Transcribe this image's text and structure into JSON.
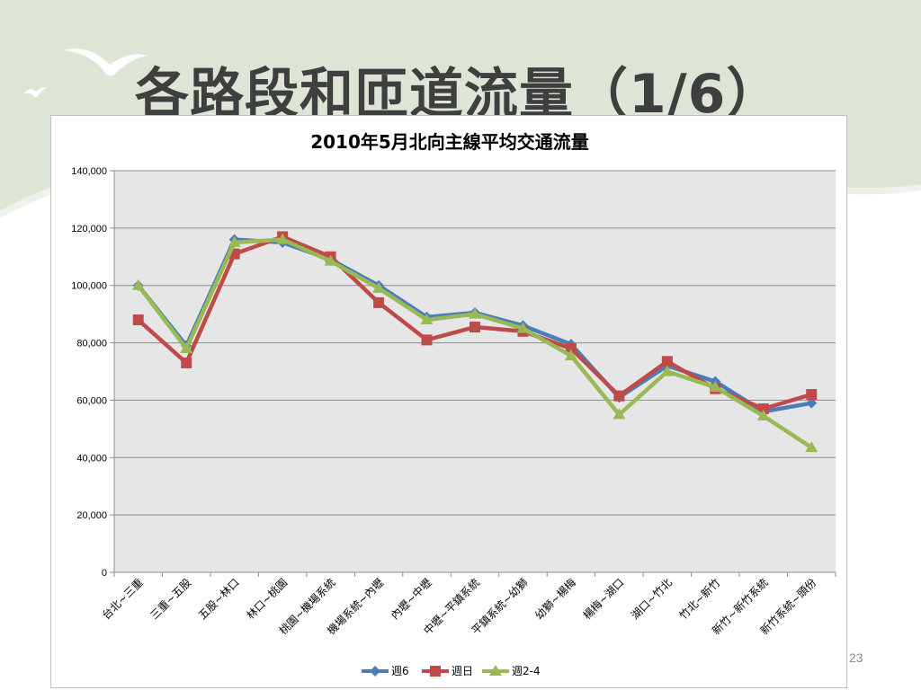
{
  "slide": {
    "title": "各路段和匝道流量（1/6）",
    "page_number": "23",
    "colors": {
      "background_band": "#dde6d6",
      "title": "#3f3f3f"
    },
    "decorations": [
      "bird-icon",
      "bird-icon"
    ]
  },
  "chart_data": {
    "type": "line",
    "title": "2010年5月北向主線平均交通流量",
    "xlabel": "",
    "ylabel": "",
    "ylim": [
      0,
      140000
    ],
    "yticks": [
      0,
      20000,
      40000,
      60000,
      80000,
      100000,
      120000,
      140000
    ],
    "ytick_labels": [
      "0",
      "20,000",
      "40,000",
      "60,000",
      "80,000",
      "100,000",
      "120,000",
      "140,000"
    ],
    "grid": true,
    "plot_background": "#e6e6e6",
    "legend_position": "bottom",
    "categories": [
      "台北~三重",
      "三重~五股",
      "五股~林口",
      "林口~桃園",
      "桃園~機場系統",
      "機場系統~內壢",
      "內壢~中壢",
      "中壢~平鎮系統",
      "平鎮系統~幼獅",
      "幼獅~楊梅",
      "楊梅~湖口",
      "湖口~竹北",
      "竹北~新竹",
      "新竹~新竹系統",
      "新竹系統~頭份"
    ],
    "series": [
      {
        "name": "週6",
        "color": "#4a7ebb",
        "marker": "diamond",
        "values": [
          100000,
          79000,
          116000,
          115000,
          109000,
          100000,
          89000,
          90500,
          86000,
          79500,
          61000,
          72000,
          66500,
          56000,
          59000
        ]
      },
      {
        "name": "週日",
        "color": "#be4b48",
        "marker": "square",
        "values": [
          88000,
          73000,
          111000,
          117000,
          110000,
          94000,
          81000,
          85500,
          84000,
          78000,
          61500,
          73500,
          64000,
          57000,
          62000
        ]
      },
      {
        "name": "週2-4",
        "color": "#98b954",
        "marker": "triangle",
        "values": [
          100000,
          78000,
          115000,
          116000,
          108500,
          99000,
          88000,
          90000,
          85000,
          75500,
          55000,
          70000,
          64500,
          54500,
          43500
        ]
      }
    ]
  }
}
